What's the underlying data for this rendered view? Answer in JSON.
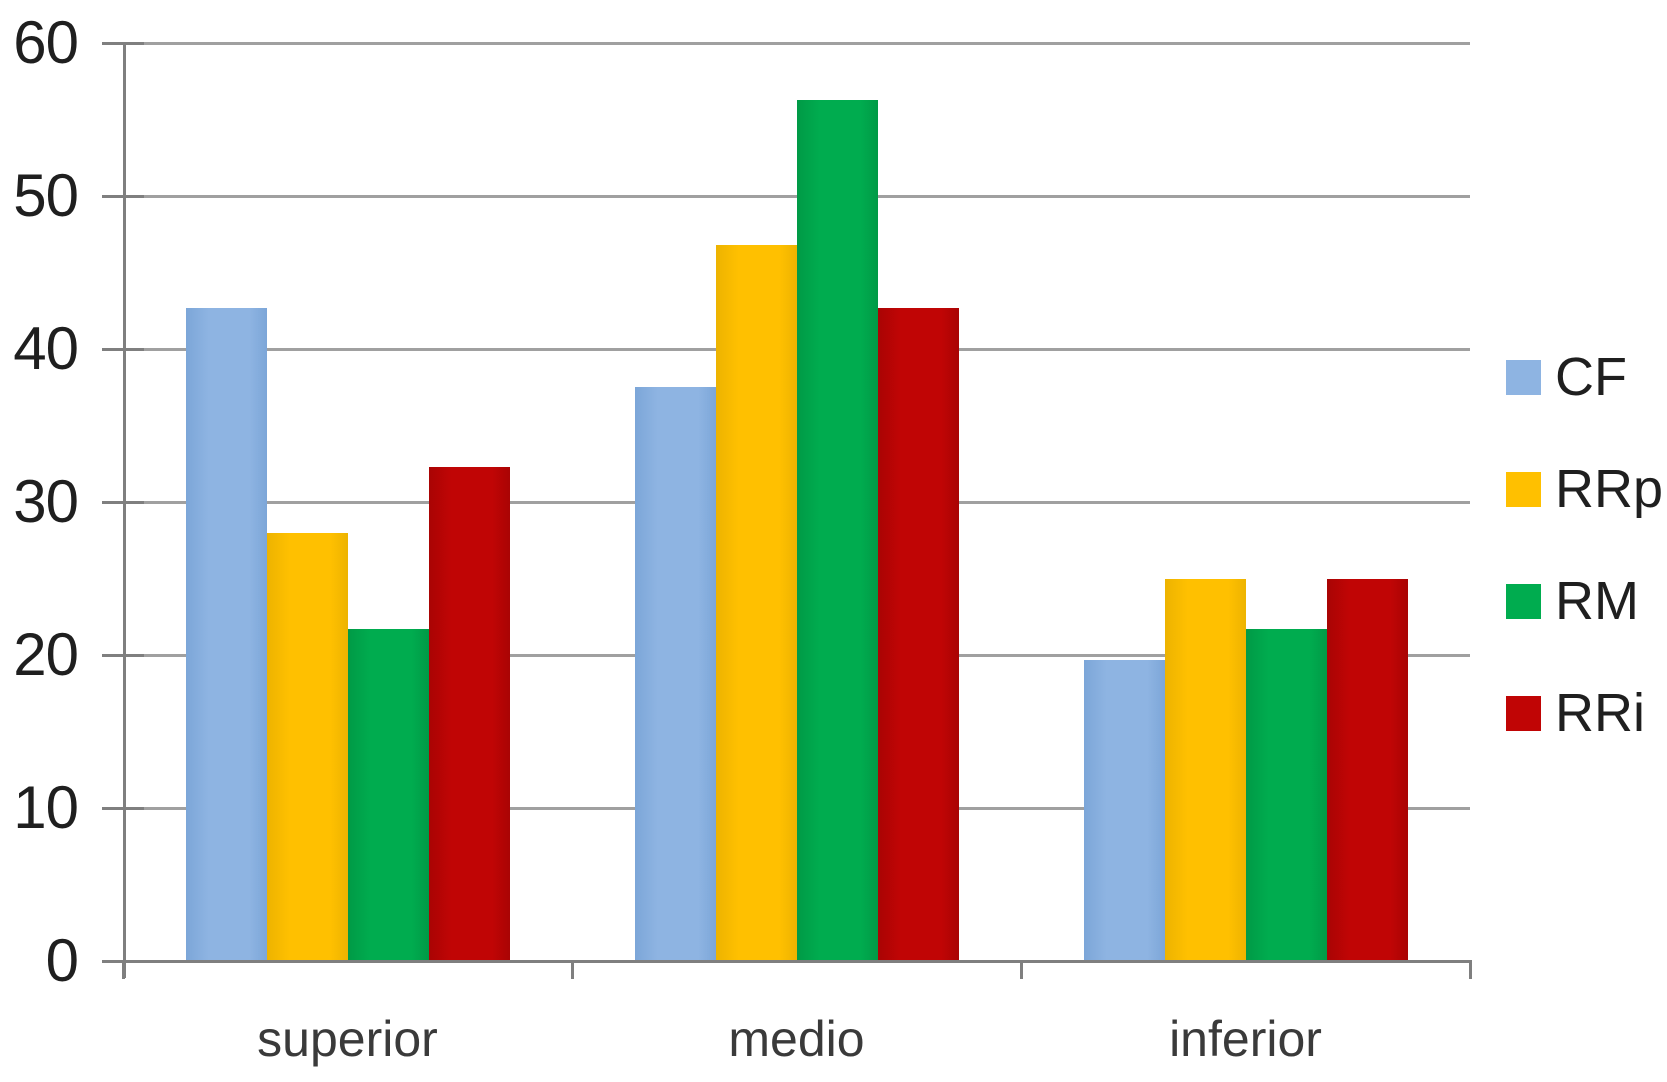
{
  "chart_data": {
    "type": "bar",
    "title": "",
    "xlabel": "",
    "ylabel": "",
    "categories": [
      "superior",
      "medio",
      "inferior"
    ],
    "series": [
      {
        "name": "CF",
        "color": "#8EB4E2",
        "edge_color": "#7CA6D8",
        "values": [
          42.7,
          37.5,
          19.7
        ]
      },
      {
        "name": "RRp",
        "color": "#FFC000",
        "edge_color": "#EDB300",
        "values": [
          28.0,
          46.8,
          25.0
        ]
      },
      {
        "name": "RM",
        "color": "#00AC4F",
        "edge_color": "#009A46",
        "values": [
          21.7,
          56.3,
          21.7
        ]
      },
      {
        "name": "RRi",
        "color": "#C00505",
        "edge_color": "#A90404",
        "values": [
          32.3,
          42.7,
          25.0
        ]
      }
    ],
    "ylim": [
      0,
      60
    ],
    "yticks": [
      0,
      10,
      20,
      30,
      40,
      50,
      60
    ],
    "grid": true,
    "legend_position": "right",
    "colors": {
      "gridline": "#a0a0a0",
      "axis": "#7f7f7f",
      "tick_label": "#1f1f1f",
      "background": "#ffffff"
    }
  }
}
